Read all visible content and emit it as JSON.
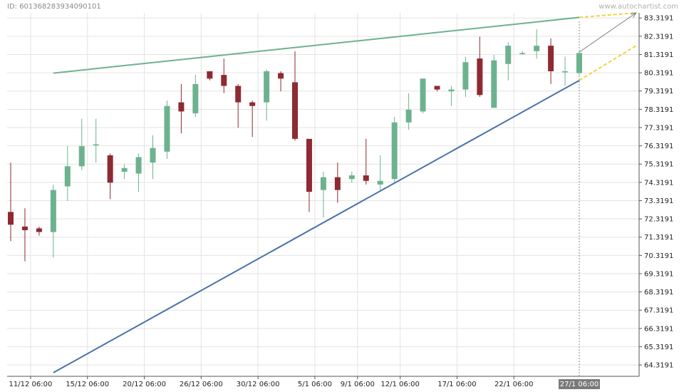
{
  "header": {
    "id_text": "ID: 601368283934090101",
    "watermark": "www.autochartist.com"
  },
  "colors": {
    "up": "#6db28f",
    "down": "#8e2a32",
    "resistance": "#6db28f",
    "support": "#4a73a8",
    "forecast": "#f3d33b",
    "arrow": "#777777",
    "grid": "#e3e3e3",
    "marker": "#888888",
    "marker_label_bg": "#7a7a7a"
  },
  "chart_data": {
    "type": "candlestick",
    "ylim": [
      63.7,
      83.6
    ],
    "y_ticks": [
      "83.3191",
      "82.3191",
      "81.3191",
      "80.3191",
      "79.3191",
      "78.3191",
      "77.3191",
      "76.3191",
      "75.3191",
      "74.3191",
      "73.3191",
      "72.3191",
      "71.3191",
      "70.3191",
      "69.3191",
      "68.3191",
      "67.3191",
      "66.3191",
      "65.3191",
      "64.3191"
    ],
    "x_labels": [
      {
        "index": 1.4,
        "label": "11/12 06:00"
      },
      {
        "index": 5.4,
        "label": "15/12 06:00"
      },
      {
        "index": 9.4,
        "label": "20/12 06:00"
      },
      {
        "index": 13.4,
        "label": "26/12 06:00"
      },
      {
        "index": 17.4,
        "label": "30/12 06:00"
      },
      {
        "index": 21.4,
        "label": "5/1 06:00"
      },
      {
        "index": 24.4,
        "label": "9/1 06:00"
      },
      {
        "index": 27.4,
        "label": "12/1 06:00"
      },
      {
        "index": 31.4,
        "label": "17/1 06:00"
      },
      {
        "index": 35.4,
        "label": "22/1 06:00"
      }
    ],
    "marker": {
      "index": 40,
      "label": "27/1 06:00"
    },
    "candles": [
      {
        "o": 72.7,
        "h": 75.4,
        "l": 71.1,
        "c": 72.0
      },
      {
        "o": 71.9,
        "h": 72.9,
        "l": 70.0,
        "c": 71.7
      },
      {
        "o": 71.8,
        "h": 71.9,
        "l": 71.4,
        "c": 71.6
      },
      {
        "o": 71.6,
        "h": 74.2,
        "l": 70.2,
        "c": 73.9
      },
      {
        "o": 74.1,
        "h": 76.3,
        "l": 73.3,
        "c": 75.2
      },
      {
        "o": 75.2,
        "h": 77.8,
        "l": 75.0,
        "c": 76.3
      },
      {
        "o": 76.4,
        "h": 77.8,
        "l": 75.4,
        "c": 76.4
      },
      {
        "o": 75.8,
        "h": 75.9,
        "l": 73.4,
        "c": 74.3
      },
      {
        "o": 74.9,
        "h": 75.3,
        "l": 74.5,
        "c": 75.1
      },
      {
        "o": 74.8,
        "h": 75.9,
        "l": 73.8,
        "c": 75.7
      },
      {
        "o": 75.4,
        "h": 76.9,
        "l": 74.5,
        "c": 76.2
      },
      {
        "o": 76.0,
        "h": 78.8,
        "l": 75.6,
        "c": 78.5
      },
      {
        "o": 78.7,
        "h": 79.7,
        "l": 77.0,
        "c": 78.2
      },
      {
        "o": 78.1,
        "h": 80.2,
        "l": 77.9,
        "c": 79.7
      },
      {
        "o": 80.4,
        "h": 80.4,
        "l": 79.9,
        "c": 80.0
      },
      {
        "o": 80.2,
        "h": 81.1,
        "l": 79.2,
        "c": 79.6
      },
      {
        "o": 79.6,
        "h": 79.7,
        "l": 77.3,
        "c": 78.7
      },
      {
        "o": 78.7,
        "h": 78.8,
        "l": 76.8,
        "c": 78.5
      },
      {
        "o": 78.7,
        "h": 80.5,
        "l": 77.7,
        "c": 80.4
      },
      {
        "o": 80.3,
        "h": 80.4,
        "l": 79.3,
        "c": 80.0
      },
      {
        "o": 79.8,
        "h": 81.5,
        "l": 76.6,
        "c": 76.7
      },
      {
        "o": 76.7,
        "h": 76.7,
        "l": 72.7,
        "c": 73.8
      },
      {
        "o": 73.9,
        "h": 74.9,
        "l": 72.4,
        "c": 74.6
      },
      {
        "o": 74.6,
        "h": 75.4,
        "l": 73.2,
        "c": 73.9
      },
      {
        "o": 74.5,
        "h": 74.9,
        "l": 74.3,
        "c": 74.7
      },
      {
        "o": 74.7,
        "h": 76.7,
        "l": 74.2,
        "c": 74.4
      },
      {
        "o": 74.2,
        "h": 75.8,
        "l": 73.9,
        "c": 74.4
      },
      {
        "o": 74.5,
        "h": 77.9,
        "l": 74.3,
        "c": 77.6
      },
      {
        "o": 77.6,
        "h": 79.2,
        "l": 77.2,
        "c": 78.3
      },
      {
        "o": 78.2,
        "h": 80.0,
        "l": 78.1,
        "c": 80.0
      },
      {
        "o": 79.6,
        "h": 79.6,
        "l": 79.3,
        "c": 79.4
      },
      {
        "o": 79.3,
        "h": 79.6,
        "l": 78.5,
        "c": 79.4
      },
      {
        "o": 79.4,
        "h": 81.2,
        "l": 79.0,
        "c": 80.9
      },
      {
        "o": 81.1,
        "h": 82.3,
        "l": 79.0,
        "c": 79.1
      },
      {
        "o": 78.4,
        "h": 81.3,
        "l": 78.4,
        "c": 81.0
      },
      {
        "o": 80.8,
        "h": 82.0,
        "l": 79.9,
        "c": 81.8
      },
      {
        "o": 81.4,
        "h": 81.5,
        "l": 81.3,
        "c": 81.4
      },
      {
        "o": 81.5,
        "h": 82.7,
        "l": 81.1,
        "c": 81.8
      },
      {
        "o": 81.8,
        "h": 82.2,
        "l": 79.7,
        "c": 80.4
      },
      {
        "o": 80.4,
        "h": 81.2,
        "l": 79.6,
        "c": 80.4
      },
      {
        "o": 80.3,
        "h": 81.5,
        "l": 80.2,
        "c": 81.4
      }
    ],
    "trend_lines": [
      {
        "name": "resistance",
        "x1": 3,
        "y1": 80.3,
        "x2": 40,
        "y2": 83.35
      },
      {
        "name": "support",
        "x1": 3,
        "y1": 63.9,
        "x2": 40,
        "y2": 79.9
      }
    ],
    "forecast_lines": [
      {
        "x1": 40,
        "y1": 83.35,
        "x2": 44,
        "y2": 83.6
      },
      {
        "x1": 40,
        "y1": 79.9,
        "x2": 44,
        "y2": 81.8
      }
    ],
    "projection_arrow": {
      "x1": 40,
      "y1": 81.45,
      "x2": 44,
      "y2": 83.6
    }
  }
}
